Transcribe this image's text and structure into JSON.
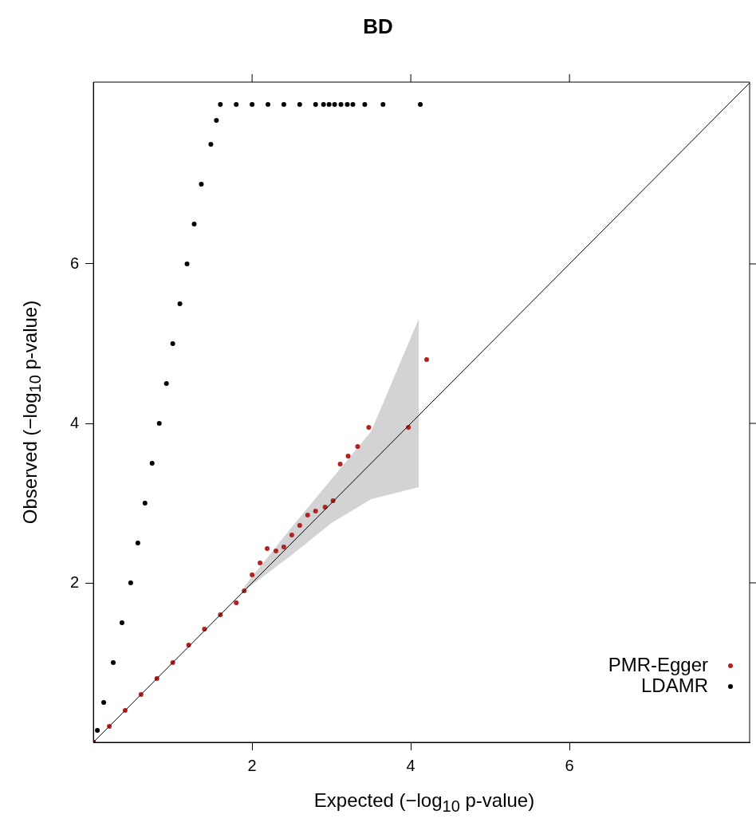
{
  "chart_data": {
    "type": "scatter",
    "title": "BD",
    "xlabel": "Expected (−log$_{10}$ p-value)",
    "ylabel": "Observed (−log$_{10}$ p-value)",
    "xlim": [
      0,
      8.27
    ],
    "ylim": [
      0,
      8.28
    ],
    "xticks": [
      2,
      4,
      6
    ],
    "yticks": [
      2,
      4,
      6
    ],
    "legend": "bottom right",
    "marker": "circle",
    "series": [
      {
        "type": "line",
        "marker": "none",
        "color": "#000000",
        "x": [
          0,
          1.9,
          2.5,
          3,
          3.5,
          4.1,
          8.27
        ],
        "values": [
          0,
          1.9,
          2.5,
          3,
          3.5,
          4.1,
          8.27
        ],
        "lower": [
          null,
          1.9,
          2.35,
          2.75,
          3.05,
          3.2,
          null
        ],
        "upper": [
          null,
          1.95,
          2.7,
          3.3,
          3.9,
          5.31,
          null
        ]
      },
      {
        "name": "PMR-Egger",
        "color": "#b22222",
        "x": [
          0,
          0.2,
          0.4,
          0.6,
          0.8,
          1.0,
          1.2,
          1.4,
          1.6,
          1.8,
          1.9,
          2.0,
          2.1,
          2.19,
          2.3,
          2.4,
          2.5,
          2.6,
          2.7,
          2.8,
          2.92,
          3.02,
          3.11,
          3.21,
          3.33,
          3.47,
          3.97,
          4.2
        ],
        "values": [
          0,
          0.2,
          0.4,
          0.6,
          0.8,
          1.0,
          1.22,
          1.42,
          1.6,
          1.75,
          1.9,
          2.1,
          2.25,
          2.43,
          2.4,
          2.45,
          2.6,
          2.72,
          2.85,
          2.9,
          2.95,
          3.03,
          3.49,
          3.59,
          3.71,
          3.95,
          3.95,
          4.8
        ]
      },
      {
        "name": "LDAMR",
        "color": "#000000",
        "x": [
          0,
          0.05,
          0.13,
          0.25,
          0.36,
          0.47,
          0.56,
          0.65,
          0.74,
          0.83,
          0.92,
          1.0,
          1.09,
          1.18,
          1.27,
          1.36,
          1.48,
          1.55,
          1.6,
          1.8,
          2.0,
          2.2,
          2.4,
          2.6,
          2.8,
          2.9,
          2.97,
          3.04,
          3.12,
          3.2,
          3.27,
          3.42,
          3.65,
          4.12
        ],
        "values": [
          0,
          0.15,
          0.5,
          1,
          1.5,
          2,
          2.5,
          3,
          3.5,
          4,
          4.5,
          5,
          5.5,
          6,
          6.5,
          7,
          7.5,
          7.8,
          8,
          8,
          8,
          8,
          8,
          8,
          8,
          8,
          8,
          8,
          8,
          8,
          8,
          8,
          8,
          8
        ]
      }
    ]
  }
}
